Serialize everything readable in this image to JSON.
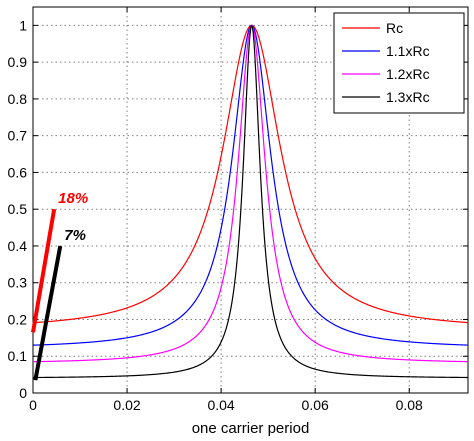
{
  "chart_data": {
    "type": "line",
    "title": "",
    "xlabel": "one carrier period",
    "ylabel": "",
    "xlim": [
      0,
      0.0925
    ],
    "ylim": [
      0,
      1.05
    ],
    "xticks": [
      0,
      0.02,
      0.04,
      0.06,
      0.08
    ],
    "xtick_labels": [
      "0",
      "0.02",
      "0.04",
      "0.06",
      "0.08"
    ],
    "yticks": [
      0,
      0.1,
      0.2,
      0.3,
      0.4,
      0.5,
      0.6,
      0.7,
      0.8,
      0.9,
      1
    ],
    "ytick_labels": [
      "0",
      "0.1",
      "0.2",
      "0.3",
      "0.4",
      "0.5",
      "0.6",
      "0.7",
      "0.8",
      "0.9",
      "1"
    ],
    "grid": true,
    "legend_position": "top-right",
    "peak_x": 0.0465,
    "series": [
      {
        "name": "Rc",
        "color": "#ff0000",
        "floor": 0.17,
        "width_a": 0.0075
      },
      {
        "name": "1.1xRc",
        "color": "#0000ff",
        "floor": 0.12,
        "width_a": 0.005
      },
      {
        "name": "1.2xRc",
        "color": "#ff00ff",
        "floor": 0.08,
        "width_a": 0.0035
      },
      {
        "name": "1.3xRc",
        "color": "#000000",
        "floor": 0.04,
        "width_a": 0.0022
      }
    ],
    "annotations": [
      {
        "text": "18%",
        "color": "#ff0000",
        "x0": 0.0,
        "y0": 0.165,
        "x1": 0.0045,
        "y1": 0.5
      },
      {
        "text": "7%",
        "color": "#000000",
        "x0": 0.0005,
        "y0": 0.035,
        "x1": 0.0058,
        "y1": 0.4
      }
    ]
  }
}
